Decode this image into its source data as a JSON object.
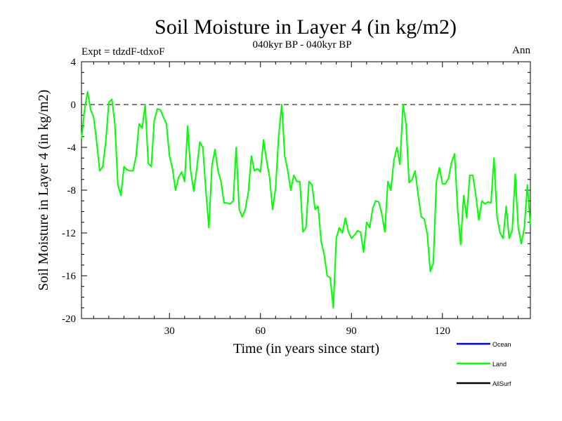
{
  "chart_data": {
    "type": "line",
    "title": "Soil Moisture in Layer 4 (in kg/m2)",
    "subtitle": "040kyr BP - 040kyr BP",
    "expt_label": "Expt = tdzdF-tdxoF",
    "season_label": "Ann",
    "xlabel": "Time (in years since start)",
    "ylabel": "Soil Moisture in Layer 4 (in kg/m2)",
    "xlim": [
      1,
      149
    ],
    "ylim": [
      -20,
      4
    ],
    "xticks": [
      30,
      60,
      90,
      120
    ],
    "yticks": [
      4,
      0,
      -4,
      -8,
      -12,
      -16,
      -20
    ],
    "reference_line": 0,
    "legend": [
      {
        "name": "Ocean",
        "color": "#0000ff"
      },
      {
        "name": "Land",
        "color": "#00ff00"
      },
      {
        "name": "AllSurf",
        "color": "#000000"
      }
    ],
    "series": [
      {
        "name": "Land",
        "color": "#00ff00",
        "x": [
          1,
          2,
          3,
          4,
          5,
          6,
          7,
          8,
          9,
          10,
          11,
          12,
          13,
          14,
          15,
          16,
          17,
          18,
          19,
          20,
          21,
          22,
          23,
          24,
          25,
          26,
          27,
          28,
          29,
          30,
          31,
          32,
          33,
          34,
          35,
          36,
          37,
          38,
          39,
          40,
          41,
          42,
          43,
          44,
          45,
          46,
          47,
          48,
          49,
          50,
          51,
          52,
          53,
          54,
          55,
          56,
          57,
          58,
          59,
          60,
          61,
          62,
          63,
          64,
          65,
          66,
          67,
          68,
          69,
          70,
          71,
          72,
          73,
          74,
          75,
          76,
          77,
          78,
          79,
          80,
          81,
          82,
          83,
          84,
          85,
          86,
          87,
          88,
          89,
          90,
          91,
          92,
          93,
          94,
          95,
          96,
          97,
          98,
          99,
          100,
          101,
          102,
          103,
          104,
          105,
          106,
          107,
          108,
          109,
          110,
          111,
          112,
          113,
          114,
          115,
          116,
          117,
          118,
          119,
          120,
          121,
          122,
          123,
          124,
          125,
          126,
          127,
          128,
          129,
          130,
          131,
          132,
          133,
          134,
          135,
          136,
          137,
          138,
          139,
          140,
          141,
          142,
          143,
          144,
          145,
          146,
          147,
          148,
          149
        ],
        "values": [
          -3.2,
          -0.5,
          1.2,
          -0.5,
          -1.2,
          -3.5,
          -6.2,
          -5.8,
          -3.5,
          0.2,
          0.5,
          -1.8,
          -7.5,
          -8.5,
          -5.8,
          -6.1,
          -6.2,
          -6.2,
          -4.8,
          -1.8,
          -2.2,
          0.0,
          -5.5,
          -5.8,
          -1.5,
          -0.4,
          -0.5,
          -1.2,
          -1.8,
          -4.8,
          -6.0,
          -8.0,
          -6.8,
          -6.3,
          -7.2,
          -2.0,
          -6.2,
          -8.1,
          -6.0,
          -3.5,
          -4.0,
          -8.0,
          -11.5,
          -5.7,
          -4.2,
          -6.2,
          -7.2,
          -9.2,
          -9.2,
          -9.3,
          -9.0,
          -4.0,
          -9.8,
          -10.5,
          -9.8,
          -8.2,
          -4.8,
          -6.2,
          -6.0,
          -6.3,
          -3.3,
          -5.2,
          -6.8,
          -9.8,
          -7.8,
          -3.0,
          0.0,
          -4.8,
          -6.2,
          -8.0,
          -6.6,
          -7.2,
          -7.2,
          -11.9,
          -11.5,
          -7.2,
          -7.5,
          -9.8,
          -9.5,
          -12.8,
          -14.0,
          -16.0,
          -16.2,
          -19.0,
          -12.5,
          -11.5,
          -12.0,
          -10.6,
          -11.9,
          -12.5,
          -12.2,
          -11.8,
          -11.9,
          -13.8,
          -11.0,
          -11.5,
          -9.7,
          -9.0,
          -9.1,
          -10.2,
          -11.9,
          -7.2,
          -8.0,
          -5.2,
          -4.0,
          -5.6,
          0.0,
          -1.8,
          -7.3,
          -7.0,
          -6.2,
          -8.5,
          -10.5,
          -10.7,
          -12.1,
          -15.6,
          -14.8,
          -7.2,
          -5.9,
          -7.4,
          -7.4,
          -6.9,
          -5.4,
          -4.6,
          -9.8,
          -13.1,
          -8.5,
          -10.6,
          -6.6,
          -6.6,
          -8.5,
          -10.8,
          -9.0,
          -9.3,
          -9.1,
          -9.2,
          -5.0,
          -10.5,
          -12.0,
          -12.5,
          -9.5,
          -12.5,
          -11.8,
          -6.5,
          -11.5,
          -13.0,
          -11.5,
          -7.5,
          -11.3
        ]
      }
    ]
  }
}
